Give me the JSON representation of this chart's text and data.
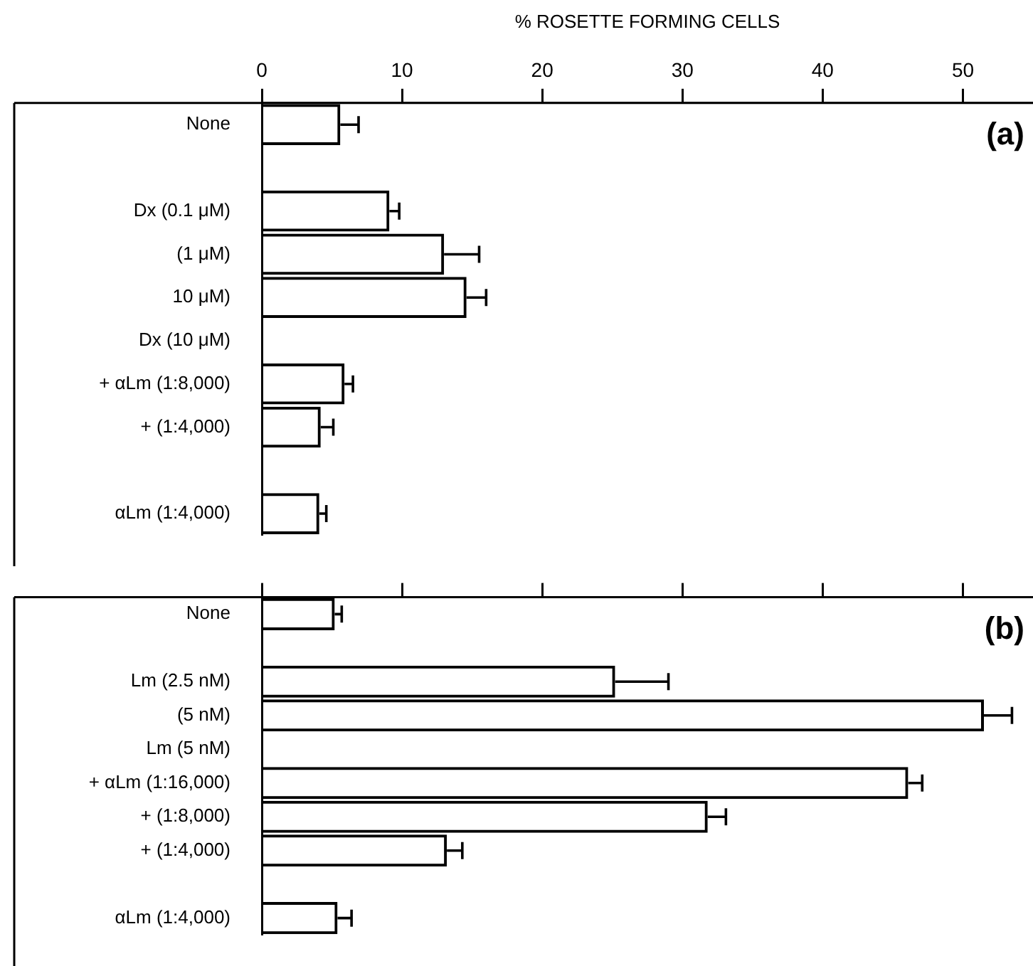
{
  "chart_data": [
    {
      "type": "bar",
      "orientation": "horizontal",
      "xlabel": "% ROSETTE FORMING CELLS",
      "categories": [
        "None",
        null,
        "Dx (0.1 μM)",
        "(1 μM)",
        "10 μM)",
        "Dx (10 μM)",
        "+ αLm (1:8,000)",
        "+ (1:4,000)",
        null,
        "αLm (1:4,000)"
      ],
      "values": [
        5.6,
        null,
        9.1,
        13.0,
        14.6,
        null,
        5.9,
        4.2,
        null,
        4.1
      ],
      "errors": [
        [
          5.6,
          6.9
        ],
        null,
        [
          9.1,
          9.8
        ],
        [
          13.0,
          15.5
        ],
        [
          14.6,
          16.0
        ],
        null,
        [
          5.9,
          6.5
        ],
        [
          4.2,
          5.1
        ],
        null,
        [
          4.1,
          4.6
        ]
      ],
      "color": "#000000",
      "xlim": [
        0,
        55
      ],
      "xticks": [
        0,
        10,
        20,
        30,
        40,
        50
      ],
      "grid": false,
      "annotations": [
        "(a)"
      ]
    },
    {
      "type": "bar",
      "orientation": "horizontal",
      "categories": [
        "None",
        null,
        "Lm (2.5 nM)",
        "(5 nM)",
        "Lm (5 nM)",
        "+ αLm (1:16,000)",
        "+ (1:8,000)",
        "+ (1:4,000)",
        null,
        "αLm (1:4,000)"
      ],
      "values": [
        5.2,
        null,
        25.2,
        51.5,
        null,
        46.1,
        31.8,
        13.2,
        null,
        5.4
      ],
      "errors": [
        [
          5.2,
          5.7
        ],
        null,
        [
          25.2,
          29.0
        ],
        [
          51.5,
          53.5
        ],
        null,
        [
          46.1,
          47.1
        ],
        [
          31.8,
          33.1
        ],
        [
          13.2,
          14.3
        ],
        null,
        [
          5.4,
          6.4
        ]
      ],
      "color": "#000000",
      "xlim": [
        0,
        55
      ],
      "xticks": [
        0,
        10,
        20,
        30,
        40,
        50
      ],
      "grid": false,
      "tick_labels": "y",
      "annotations": [
        "(b)"
      ]
    }
  ]
}
